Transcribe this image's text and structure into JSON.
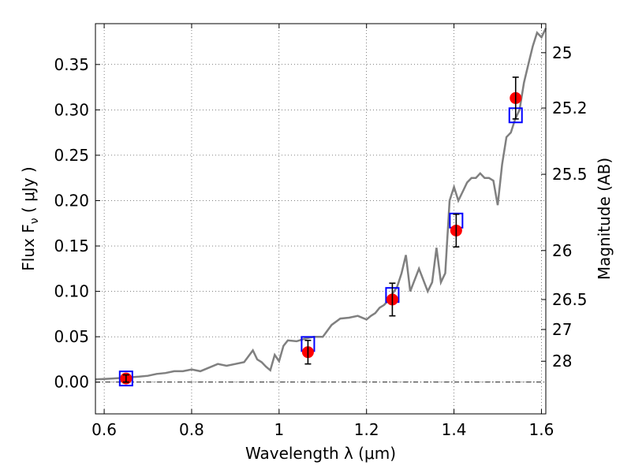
{
  "chart_data": {
    "type": "scatter",
    "xlabel": "Wavelength  λ (μm)",
    "ylabel": "Flux  F",
    "ylabel_sub": "ν",
    "ylabel_unit": "  ( μJy )",
    "y2label": "Magnitude (AB)",
    "xlim": [
      0.58,
      1.61
    ],
    "ylim": [
      -0.035,
      0.395
    ],
    "grid": true,
    "x_ticks": [
      {
        "value": 0.6,
        "label": "0.6"
      },
      {
        "value": 0.8,
        "label": "0.8"
      },
      {
        "value": 1.0,
        "label": "1"
      },
      {
        "value": 1.2,
        "label": "1.2"
      },
      {
        "value": 1.4,
        "label": "1.4"
      },
      {
        "value": 1.6,
        "label": "1.6"
      }
    ],
    "y_ticks": [
      {
        "value": 0.0,
        "label": "0.00"
      },
      {
        "value": 0.05,
        "label": "0.05"
      },
      {
        "value": 0.1,
        "label": "0.10"
      },
      {
        "value": 0.15,
        "label": "0.15"
      },
      {
        "value": 0.2,
        "label": "0.20"
      },
      {
        "value": 0.25,
        "label": "0.25"
      },
      {
        "value": 0.3,
        "label": "0.30"
      },
      {
        "value": 0.35,
        "label": "0.35"
      }
    ],
    "y2_ticks": [
      {
        "flux": 0.363,
        "label": "25"
      },
      {
        "flux": 0.302,
        "label": "25.2"
      },
      {
        "flux": 0.229,
        "label": "25.5"
      },
      {
        "flux": 0.145,
        "label": "26"
      },
      {
        "flux": 0.091,
        "label": "26.5"
      },
      {
        "flux": 0.058,
        "label": "27"
      },
      {
        "flux": 0.023,
        "label": "28"
      }
    ],
    "series": [
      {
        "kind": "model_spectrum",
        "color": "#808080",
        "x": [
          0.58,
          0.62,
          0.65,
          0.68,
          0.7,
          0.72,
          0.74,
          0.76,
          0.78,
          0.8,
          0.82,
          0.84,
          0.86,
          0.88,
          0.9,
          0.92,
          0.94,
          0.95,
          0.96,
          0.97,
          0.98,
          0.99,
          1.0,
          1.01,
          1.02,
          1.04,
          1.06,
          1.08,
          1.1,
          1.12,
          1.14,
          1.16,
          1.18,
          1.2,
          1.21,
          1.22,
          1.23,
          1.24,
          1.25,
          1.26,
          1.27,
          1.28,
          1.29,
          1.3,
          1.32,
          1.34,
          1.35,
          1.36,
          1.37,
          1.38,
          1.39,
          1.4,
          1.41,
          1.42,
          1.43,
          1.44,
          1.45,
          1.46,
          1.47,
          1.48,
          1.49,
          1.5,
          1.51,
          1.52,
          1.53,
          1.54,
          1.55,
          1.56,
          1.57,
          1.58,
          1.59,
          1.6,
          1.61
        ],
        "y": [
          0.003,
          0.004,
          0.005,
          0.006,
          0.007,
          0.009,
          0.01,
          0.012,
          0.012,
          0.014,
          0.012,
          0.016,
          0.02,
          0.018,
          0.02,
          0.022,
          0.035,
          0.025,
          0.022,
          0.017,
          0.013,
          0.03,
          0.023,
          0.04,
          0.046,
          0.045,
          0.048,
          0.05,
          0.05,
          0.063,
          0.07,
          0.071,
          0.073,
          0.069,
          0.073,
          0.076,
          0.082,
          0.085,
          0.09,
          0.098,
          0.105,
          0.12,
          0.14,
          0.1,
          0.125,
          0.1,
          0.11,
          0.148,
          0.11,
          0.12,
          0.2,
          0.215,
          0.2,
          0.21,
          0.22,
          0.225,
          0.225,
          0.23,
          0.225,
          0.225,
          0.222,
          0.195,
          0.24,
          0.27,
          0.275,
          0.29,
          0.3,
          0.33,
          0.35,
          0.37,
          0.385,
          0.38,
          0.39
        ]
      },
      {
        "kind": "model_photometry",
        "marker": "square",
        "color": "#0000ff",
        "x": [
          0.65,
          1.066,
          1.259,
          1.405,
          1.541
        ],
        "y": [
          0.004,
          0.042,
          0.096,
          0.178,
          0.294
        ]
      },
      {
        "kind": "observed_photometry",
        "marker": "circle",
        "color": "#ff0000",
        "x": [
          0.65,
          1.066,
          1.259,
          1.405,
          1.541
        ],
        "y": [
          0.004,
          0.033,
          0.091,
          0.167,
          0.313
        ],
        "err": [
          0.004,
          0.013,
          0.018,
          0.018,
          0.023
        ]
      }
    ]
  }
}
